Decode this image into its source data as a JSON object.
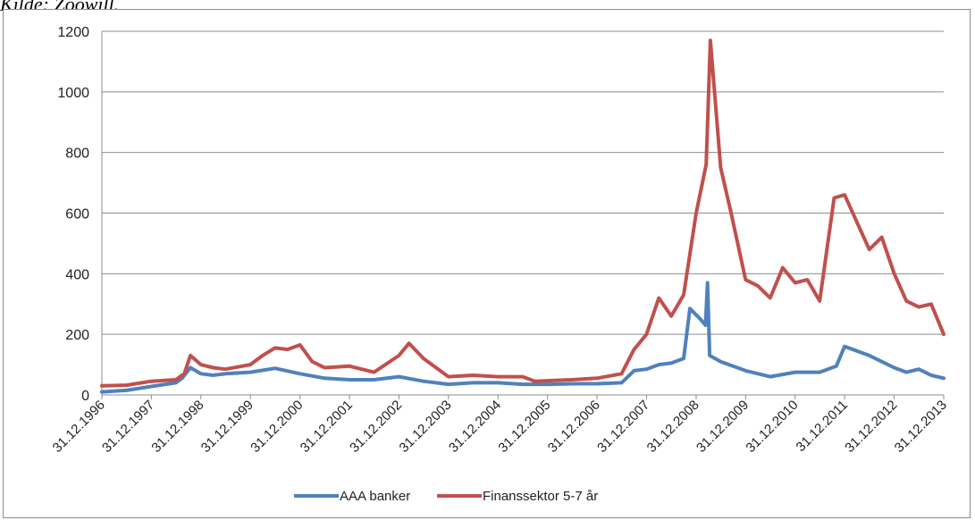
{
  "caption": "Kilde: Zoowill.",
  "chart_data": {
    "type": "line",
    "title": "",
    "xlabel": "",
    "ylabel": "",
    "ylim": [
      0,
      1200
    ],
    "yticks": [
      0,
      200,
      400,
      600,
      800,
      1000,
      1200
    ],
    "x_tick_labels": [
      "31.12.1996",
      "31.12.1997",
      "31.12.1998",
      "31.12.1999",
      "31.12.2000",
      "31.12.2001",
      "31.12.2002",
      "31.12.2003",
      "31.12.2004",
      "31.12.2005",
      "31.12.2006",
      "31.12.2007",
      "31.12.2008",
      "31.12.2009",
      "31.12.2010",
      "31.12.2011",
      "31.12.2012",
      "31.12.2013"
    ],
    "xlim": [
      "1996-12-31",
      "2013-12-31"
    ],
    "grid": true,
    "legend_position": "bottom",
    "series": [
      {
        "name": "AAA banker",
        "color": "#4f81bd",
        "points": [
          [
            "1996-12-31",
            10
          ],
          [
            "1997-06-30",
            15
          ],
          [
            "1997-12-31",
            28
          ],
          [
            "1998-06-30",
            40
          ],
          [
            "1998-08-15",
            55
          ],
          [
            "1998-10-15",
            90
          ],
          [
            "1998-12-31",
            70
          ],
          [
            "1999-03-31",
            65
          ],
          [
            "1999-06-30",
            70
          ],
          [
            "1999-12-31",
            75
          ],
          [
            "2000-06-30",
            88
          ],
          [
            "2000-12-31",
            70
          ],
          [
            "2001-06-30",
            55
          ],
          [
            "2001-12-31",
            50
          ],
          [
            "2002-06-30",
            50
          ],
          [
            "2002-12-31",
            60
          ],
          [
            "2003-06-30",
            45
          ],
          [
            "2003-12-31",
            35
          ],
          [
            "2004-06-30",
            40
          ],
          [
            "2004-12-31",
            40
          ],
          [
            "2005-06-30",
            35
          ],
          [
            "2005-12-31",
            35
          ],
          [
            "2006-06-30",
            37
          ],
          [
            "2006-12-31",
            37
          ],
          [
            "2007-06-30",
            40
          ],
          [
            "2007-09-30",
            80
          ],
          [
            "2007-12-31",
            85
          ],
          [
            "2008-03-31",
            100
          ],
          [
            "2008-06-30",
            105
          ],
          [
            "2008-09-30",
            120
          ],
          [
            "2008-11-15",
            285
          ],
          [
            "2009-01-31",
            250
          ],
          [
            "2009-03-10",
            230
          ],
          [
            "2009-03-25",
            370
          ],
          [
            "2009-04-10",
            130
          ],
          [
            "2009-06-30",
            110
          ],
          [
            "2009-12-31",
            80
          ],
          [
            "2010-06-30",
            60
          ],
          [
            "2010-12-31",
            75
          ],
          [
            "2011-06-30",
            75
          ],
          [
            "2011-10-31",
            95
          ],
          [
            "2011-12-31",
            160
          ],
          [
            "2012-06-30",
            130
          ],
          [
            "2012-12-31",
            90
          ],
          [
            "2013-03-31",
            75
          ],
          [
            "2013-06-30",
            85
          ],
          [
            "2013-09-30",
            65
          ],
          [
            "2013-12-31",
            55
          ]
        ]
      },
      {
        "name": "Finanssektor 5-7 år",
        "color": "#c0504d",
        "points": [
          [
            "1996-12-31",
            30
          ],
          [
            "1997-06-30",
            32
          ],
          [
            "1997-12-31",
            45
          ],
          [
            "1998-06-30",
            50
          ],
          [
            "1998-08-31",
            70
          ],
          [
            "1998-10-15",
            130
          ],
          [
            "1998-12-31",
            100
          ],
          [
            "1999-03-31",
            90
          ],
          [
            "1999-06-30",
            85
          ],
          [
            "1999-12-31",
            100
          ],
          [
            "2000-03-31",
            130
          ],
          [
            "2000-06-30",
            155
          ],
          [
            "2000-09-30",
            150
          ],
          [
            "2000-12-31",
            165
          ],
          [
            "2001-03-31",
            110
          ],
          [
            "2001-06-30",
            90
          ],
          [
            "2001-12-31",
            95
          ],
          [
            "2002-06-30",
            75
          ],
          [
            "2002-12-31",
            130
          ],
          [
            "2003-03-15",
            170
          ],
          [
            "2003-06-30",
            120
          ],
          [
            "2003-12-31",
            60
          ],
          [
            "2004-06-30",
            65
          ],
          [
            "2004-12-31",
            60
          ],
          [
            "2005-06-30",
            60
          ],
          [
            "2005-09-30",
            45
          ],
          [
            "2006-06-30",
            50
          ],
          [
            "2006-12-31",
            55
          ],
          [
            "2007-06-30",
            70
          ],
          [
            "2007-09-30",
            150
          ],
          [
            "2007-12-31",
            200
          ],
          [
            "2008-03-31",
            320
          ],
          [
            "2008-06-30",
            260
          ],
          [
            "2008-09-30",
            330
          ],
          [
            "2008-12-31",
            600
          ],
          [
            "2009-03-15",
            760
          ],
          [
            "2009-04-15",
            1170
          ],
          [
            "2009-06-30",
            750
          ],
          [
            "2009-09-15",
            600
          ],
          [
            "2009-12-31",
            380
          ],
          [
            "2010-03-31",
            360
          ],
          [
            "2010-06-30",
            320
          ],
          [
            "2010-09-30",
            420
          ],
          [
            "2010-12-31",
            370
          ],
          [
            "2011-03-31",
            380
          ],
          [
            "2011-06-30",
            310
          ],
          [
            "2011-10-15",
            650
          ],
          [
            "2011-12-31",
            660
          ],
          [
            "2012-03-31",
            570
          ],
          [
            "2012-06-30",
            480
          ],
          [
            "2012-09-30",
            520
          ],
          [
            "2012-12-31",
            400
          ],
          [
            "2013-03-31",
            310
          ],
          [
            "2013-06-30",
            290
          ],
          [
            "2013-09-30",
            300
          ],
          [
            "2013-12-31",
            200
          ]
        ]
      }
    ]
  }
}
